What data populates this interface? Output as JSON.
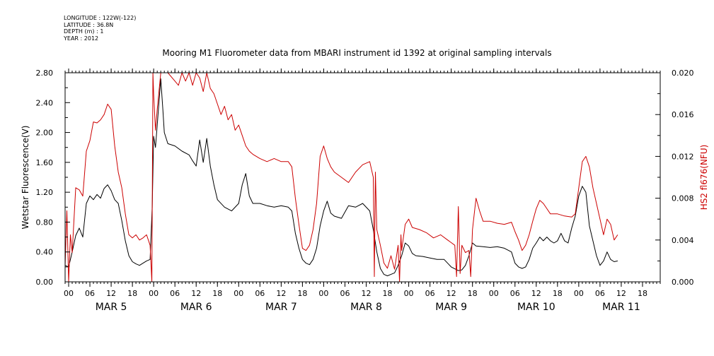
{
  "metadata": [
    {
      "label": "LONGITUDE",
      "value": "122W(-122)"
    },
    {
      "label": "LATITUDE",
      "value": "36.8N"
    },
    {
      "label": "DEPTH (m)",
      "value": "1"
    },
    {
      "label": "YEAR",
      "value": "2012"
    }
  ],
  "chart_data": {
    "type": "line",
    "title": "Mooring M1 Fluorometer data from MBARI instrument id 1392 at original sampling intervals",
    "x_unit": "hours since 2012-03-05 00:00",
    "xlim": [
      -1,
      167
    ],
    "hour_ticks": [
      "00",
      "06",
      "12",
      "18",
      "00",
      "06",
      "12",
      "18",
      "00",
      "06",
      "12",
      "18",
      "00",
      "06",
      "12",
      "18",
      "00",
      "06",
      "12",
      "18",
      "00",
      "06",
      "12",
      "18",
      "00",
      "06",
      "12",
      "18"
    ],
    "day_labels": [
      "MAR  5",
      "MAR  6",
      "MAR  7",
      "MAR  8",
      "MAR  9",
      "MAR 10",
      "MAR 11"
    ],
    "y_left": {
      "label": "Wetstar Fluorescence(V)",
      "lim": [
        0,
        2.8
      ],
      "ticks": [
        "0.00",
        "0.40",
        "0.80",
        "1.20",
        "1.60",
        "2.00",
        "2.40",
        "2.80"
      ],
      "color": "#000000"
    },
    "y_right": {
      "label": "HS2 fl676(NFU)",
      "lim": [
        0,
        0.02
      ],
      "ticks": [
        "0.000",
        "0.004",
        "0.008",
        "0.012",
        "0.016",
        "0.020"
      ],
      "color": "#cc0000"
    },
    "series": [
      {
        "axis": "left",
        "color": "#000000",
        "points": [
          [
            -1,
            0.22
          ],
          [
            0,
            0.2
          ],
          [
            1,
            0.4
          ],
          [
            2,
            0.62
          ],
          [
            3,
            0.72
          ],
          [
            4,
            0.6
          ],
          [
            5,
            1.05
          ],
          [
            6,
            1.15
          ],
          [
            7,
            1.1
          ],
          [
            8,
            1.17
          ],
          [
            9,
            1.12
          ],
          [
            10,
            1.25
          ],
          [
            11,
            1.3
          ],
          [
            12,
            1.22
          ],
          [
            13,
            1.1
          ],
          [
            14,
            1.05
          ],
          [
            15,
            0.82
          ],
          [
            16,
            0.55
          ],
          [
            17,
            0.35
          ],
          [
            18,
            0.27
          ],
          [
            19,
            0.24
          ],
          [
            20,
            0.22
          ],
          [
            21,
            0.25
          ],
          [
            22,
            0.28
          ],
          [
            23,
            0.3
          ],
          [
            23.6,
            1.0
          ],
          [
            24,
            1.95
          ],
          [
            24.5,
            1.8
          ],
          [
            25,
            2.1
          ],
          [
            26,
            2.72
          ],
          [
            26.6,
            2.3
          ],
          [
            27,
            2.0
          ],
          [
            28,
            1.85
          ],
          [
            30,
            1.82
          ],
          [
            32,
            1.75
          ],
          [
            34,
            1.7
          ],
          [
            35,
            1.62
          ],
          [
            36,
            1.55
          ],
          [
            37,
            1.9
          ],
          [
            38,
            1.6
          ],
          [
            39,
            1.92
          ],
          [
            40,
            1.55
          ],
          [
            41,
            1.3
          ],
          [
            42,
            1.1
          ],
          [
            44,
            1.0
          ],
          [
            46,
            0.95
          ],
          [
            48,
            1.05
          ],
          [
            49,
            1.3
          ],
          [
            50,
            1.45
          ],
          [
            51,
            1.15
          ],
          [
            52,
            1.05
          ],
          [
            54,
            1.05
          ],
          [
            56,
            1.02
          ],
          [
            58,
            1.0
          ],
          [
            60,
            1.02
          ],
          [
            62,
            1.0
          ],
          [
            63,
            0.95
          ],
          [
            64,
            0.65
          ],
          [
            65,
            0.45
          ],
          [
            66,
            0.3
          ],
          [
            67,
            0.25
          ],
          [
            68,
            0.23
          ],
          [
            69,
            0.3
          ],
          [
            70,
            0.45
          ],
          [
            71,
            0.75
          ],
          [
            72,
            0.95
          ],
          [
            73,
            1.08
          ],
          [
            74,
            0.92
          ],
          [
            75,
            0.88
          ],
          [
            77,
            0.85
          ],
          [
            79,
            1.02
          ],
          [
            81,
            1.0
          ],
          [
            83,
            1.05
          ],
          [
            85,
            0.95
          ],
          [
            86,
            0.7
          ],
          [
            87,
            0.4
          ],
          [
            88,
            0.18
          ],
          [
            89,
            0.1
          ],
          [
            90,
            0.08
          ],
          [
            91,
            0.1
          ],
          [
            92,
            0.12
          ],
          [
            93,
            0.22
          ],
          [
            94,
            0.35
          ],
          [
            95,
            0.52
          ],
          [
            96,
            0.48
          ],
          [
            97,
            0.38
          ],
          [
            98,
            0.35
          ],
          [
            100,
            0.34
          ],
          [
            102,
            0.32
          ],
          [
            104,
            0.3
          ],
          [
            106,
            0.3
          ],
          [
            108,
            0.2
          ],
          [
            110,
            0.15
          ],
          [
            111,
            0.16
          ],
          [
            112,
            0.22
          ],
          [
            113,
            0.35
          ],
          [
            114,
            0.52
          ],
          [
            115,
            0.48
          ],
          [
            117,
            0.47
          ],
          [
            119,
            0.46
          ],
          [
            121,
            0.47
          ],
          [
            123,
            0.45
          ],
          [
            125,
            0.4
          ],
          [
            126,
            0.25
          ],
          [
            127,
            0.2
          ],
          [
            128,
            0.18
          ],
          [
            129,
            0.2
          ],
          [
            130,
            0.3
          ],
          [
            131,
            0.45
          ],
          [
            132,
            0.52
          ],
          [
            133,
            0.6
          ],
          [
            134,
            0.55
          ],
          [
            135,
            0.6
          ],
          [
            136,
            0.55
          ],
          [
            137,
            0.52
          ],
          [
            138,
            0.55
          ],
          [
            139,
            0.65
          ],
          [
            140,
            0.55
          ],
          [
            141,
            0.52
          ],
          [
            142,
            0.72
          ],
          [
            143,
            0.88
          ],
          [
            144,
            1.15
          ],
          [
            145,
            1.28
          ],
          [
            146,
            1.2
          ],
          [
            147,
            0.75
          ],
          [
            148,
            0.55
          ],
          [
            149,
            0.35
          ],
          [
            150,
            0.22
          ],
          [
            151,
            0.28
          ],
          [
            152,
            0.4
          ],
          [
            153,
            0.3
          ],
          [
            154,
            0.27
          ],
          [
            155,
            0.28
          ]
        ]
      },
      {
        "axis": "right",
        "color": "#cc0000",
        "points": [
          [
            -1,
            0.0015
          ],
          [
            -0.5,
            0.0068
          ],
          [
            0,
            0.0
          ],
          [
            0.5,
            0.0045
          ],
          [
            1,
            0.0028
          ],
          [
            2,
            0.009
          ],
          [
            3,
            0.0088
          ],
          [
            4,
            0.0082
          ],
          [
            5,
            0.0125
          ],
          [
            6,
            0.0135
          ],
          [
            7,
            0.0153
          ],
          [
            8,
            0.0152
          ],
          [
            9,
            0.0155
          ],
          [
            10,
            0.016
          ],
          [
            11,
            0.017
          ],
          [
            12,
            0.0165
          ],
          [
            13,
            0.013
          ],
          [
            14,
            0.0105
          ],
          [
            15,
            0.009
          ],
          [
            16,
            0.0065
          ],
          [
            17,
            0.0045
          ],
          [
            18,
            0.0042
          ],
          [
            19,
            0.0045
          ],
          [
            20,
            0.004
          ],
          [
            21,
            0.0042
          ],
          [
            22,
            0.0045
          ],
          [
            23,
            0.0035
          ],
          [
            23.5,
            0.0
          ],
          [
            23.8,
            0.02
          ],
          [
            24,
            0.018
          ],
          [
            24.5,
            0.0145
          ],
          [
            25,
            0.0165
          ],
          [
            26,
            0.02
          ],
          [
            28,
            0.02
          ],
          [
            30,
            0.0192
          ],
          [
            31,
            0.0188
          ],
          [
            32,
            0.02
          ],
          [
            33,
            0.0192
          ],
          [
            34,
            0.02
          ],
          [
            35,
            0.0188
          ],
          [
            36,
            0.02
          ],
          [
            37,
            0.0195
          ],
          [
            38,
            0.0182
          ],
          [
            39,
            0.02
          ],
          [
            40,
            0.0185
          ],
          [
            41,
            0.018
          ],
          [
            42,
            0.017
          ],
          [
            43,
            0.016
          ],
          [
            44,
            0.0168
          ],
          [
            45,
            0.0155
          ],
          [
            46,
            0.016
          ],
          [
            47,
            0.0145
          ],
          [
            48,
            0.015
          ],
          [
            49,
            0.014
          ],
          [
            50,
            0.013
          ],
          [
            51,
            0.0125
          ],
          [
            52,
            0.0122
          ],
          [
            54,
            0.0118
          ],
          [
            56,
            0.0115
          ],
          [
            58,
            0.0118
          ],
          [
            60,
            0.0115
          ],
          [
            62,
            0.0115
          ],
          [
            63,
            0.011
          ],
          [
            64,
            0.008
          ],
          [
            65,
            0.0055
          ],
          [
            66,
            0.0032
          ],
          [
            67,
            0.003
          ],
          [
            68,
            0.0035
          ],
          [
            69,
            0.005
          ],
          [
            70,
            0.0075
          ],
          [
            71,
            0.012
          ],
          [
            72,
            0.013
          ],
          [
            73,
            0.0118
          ],
          [
            74,
            0.011
          ],
          [
            75,
            0.0105
          ],
          [
            77,
            0.01
          ],
          [
            79,
            0.0095
          ],
          [
            81,
            0.0105
          ],
          [
            83,
            0.0112
          ],
          [
            85,
            0.0115
          ],
          [
            86,
            0.01
          ],
          [
            86.3,
            0.0005
          ],
          [
            86.6,
            0.0105
          ],
          [
            87,
            0.005
          ],
          [
            88,
            0.0035
          ],
          [
            89,
            0.0018
          ],
          [
            90,
            0.0013
          ],
          [
            91,
            0.0025
          ],
          [
            92,
            0.0012
          ],
          [
            93,
            0.0035
          ],
          [
            93.4,
            0.0
          ],
          [
            93.8,
            0.0045
          ],
          [
            94,
            0.003
          ],
          [
            95,
            0.0055
          ],
          [
            96,
            0.006
          ],
          [
            97,
            0.0052
          ],
          [
            99,
            0.005
          ],
          [
            101,
            0.0047
          ],
          [
            103,
            0.0042
          ],
          [
            105,
            0.0045
          ],
          [
            107,
            0.004
          ],
          [
            109,
            0.0035
          ],
          [
            109.5,
            0.0005
          ],
          [
            110,
            0.0072
          ],
          [
            110.5,
            0.0008
          ],
          [
            111,
            0.0035
          ],
          [
            112,
            0.0028
          ],
          [
            113,
            0.003
          ],
          [
            113.5,
            0.0005
          ],
          [
            114,
            0.005
          ],
          [
            115,
            0.008
          ],
          [
            116,
            0.0068
          ],
          [
            117,
            0.0058
          ],
          [
            119,
            0.0058
          ],
          [
            121,
            0.0056
          ],
          [
            123,
            0.0055
          ],
          [
            125,
            0.0057
          ],
          [
            126,
            0.0048
          ],
          [
            127,
            0.004
          ],
          [
            128,
            0.003
          ],
          [
            129,
            0.0035
          ],
          [
            130,
            0.0045
          ],
          [
            131,
            0.0058
          ],
          [
            132,
            0.007
          ],
          [
            133,
            0.0078
          ],
          [
            134,
            0.0075
          ],
          [
            135,
            0.007
          ],
          [
            136,
            0.0065
          ],
          [
            138,
            0.0065
          ],
          [
            140,
            0.0063
          ],
          [
            142,
            0.0062
          ],
          [
            143,
            0.0065
          ],
          [
            144,
            0.009
          ],
          [
            145,
            0.0115
          ],
          [
            146,
            0.012
          ],
          [
            147,
            0.011
          ],
          [
            148,
            0.009
          ],
          [
            149,
            0.0075
          ],
          [
            150,
            0.006
          ],
          [
            151,
            0.0045
          ],
          [
            152,
            0.006
          ],
          [
            153,
            0.0055
          ],
          [
            154,
            0.004
          ],
          [
            155,
            0.0045
          ]
        ]
      }
    ]
  }
}
